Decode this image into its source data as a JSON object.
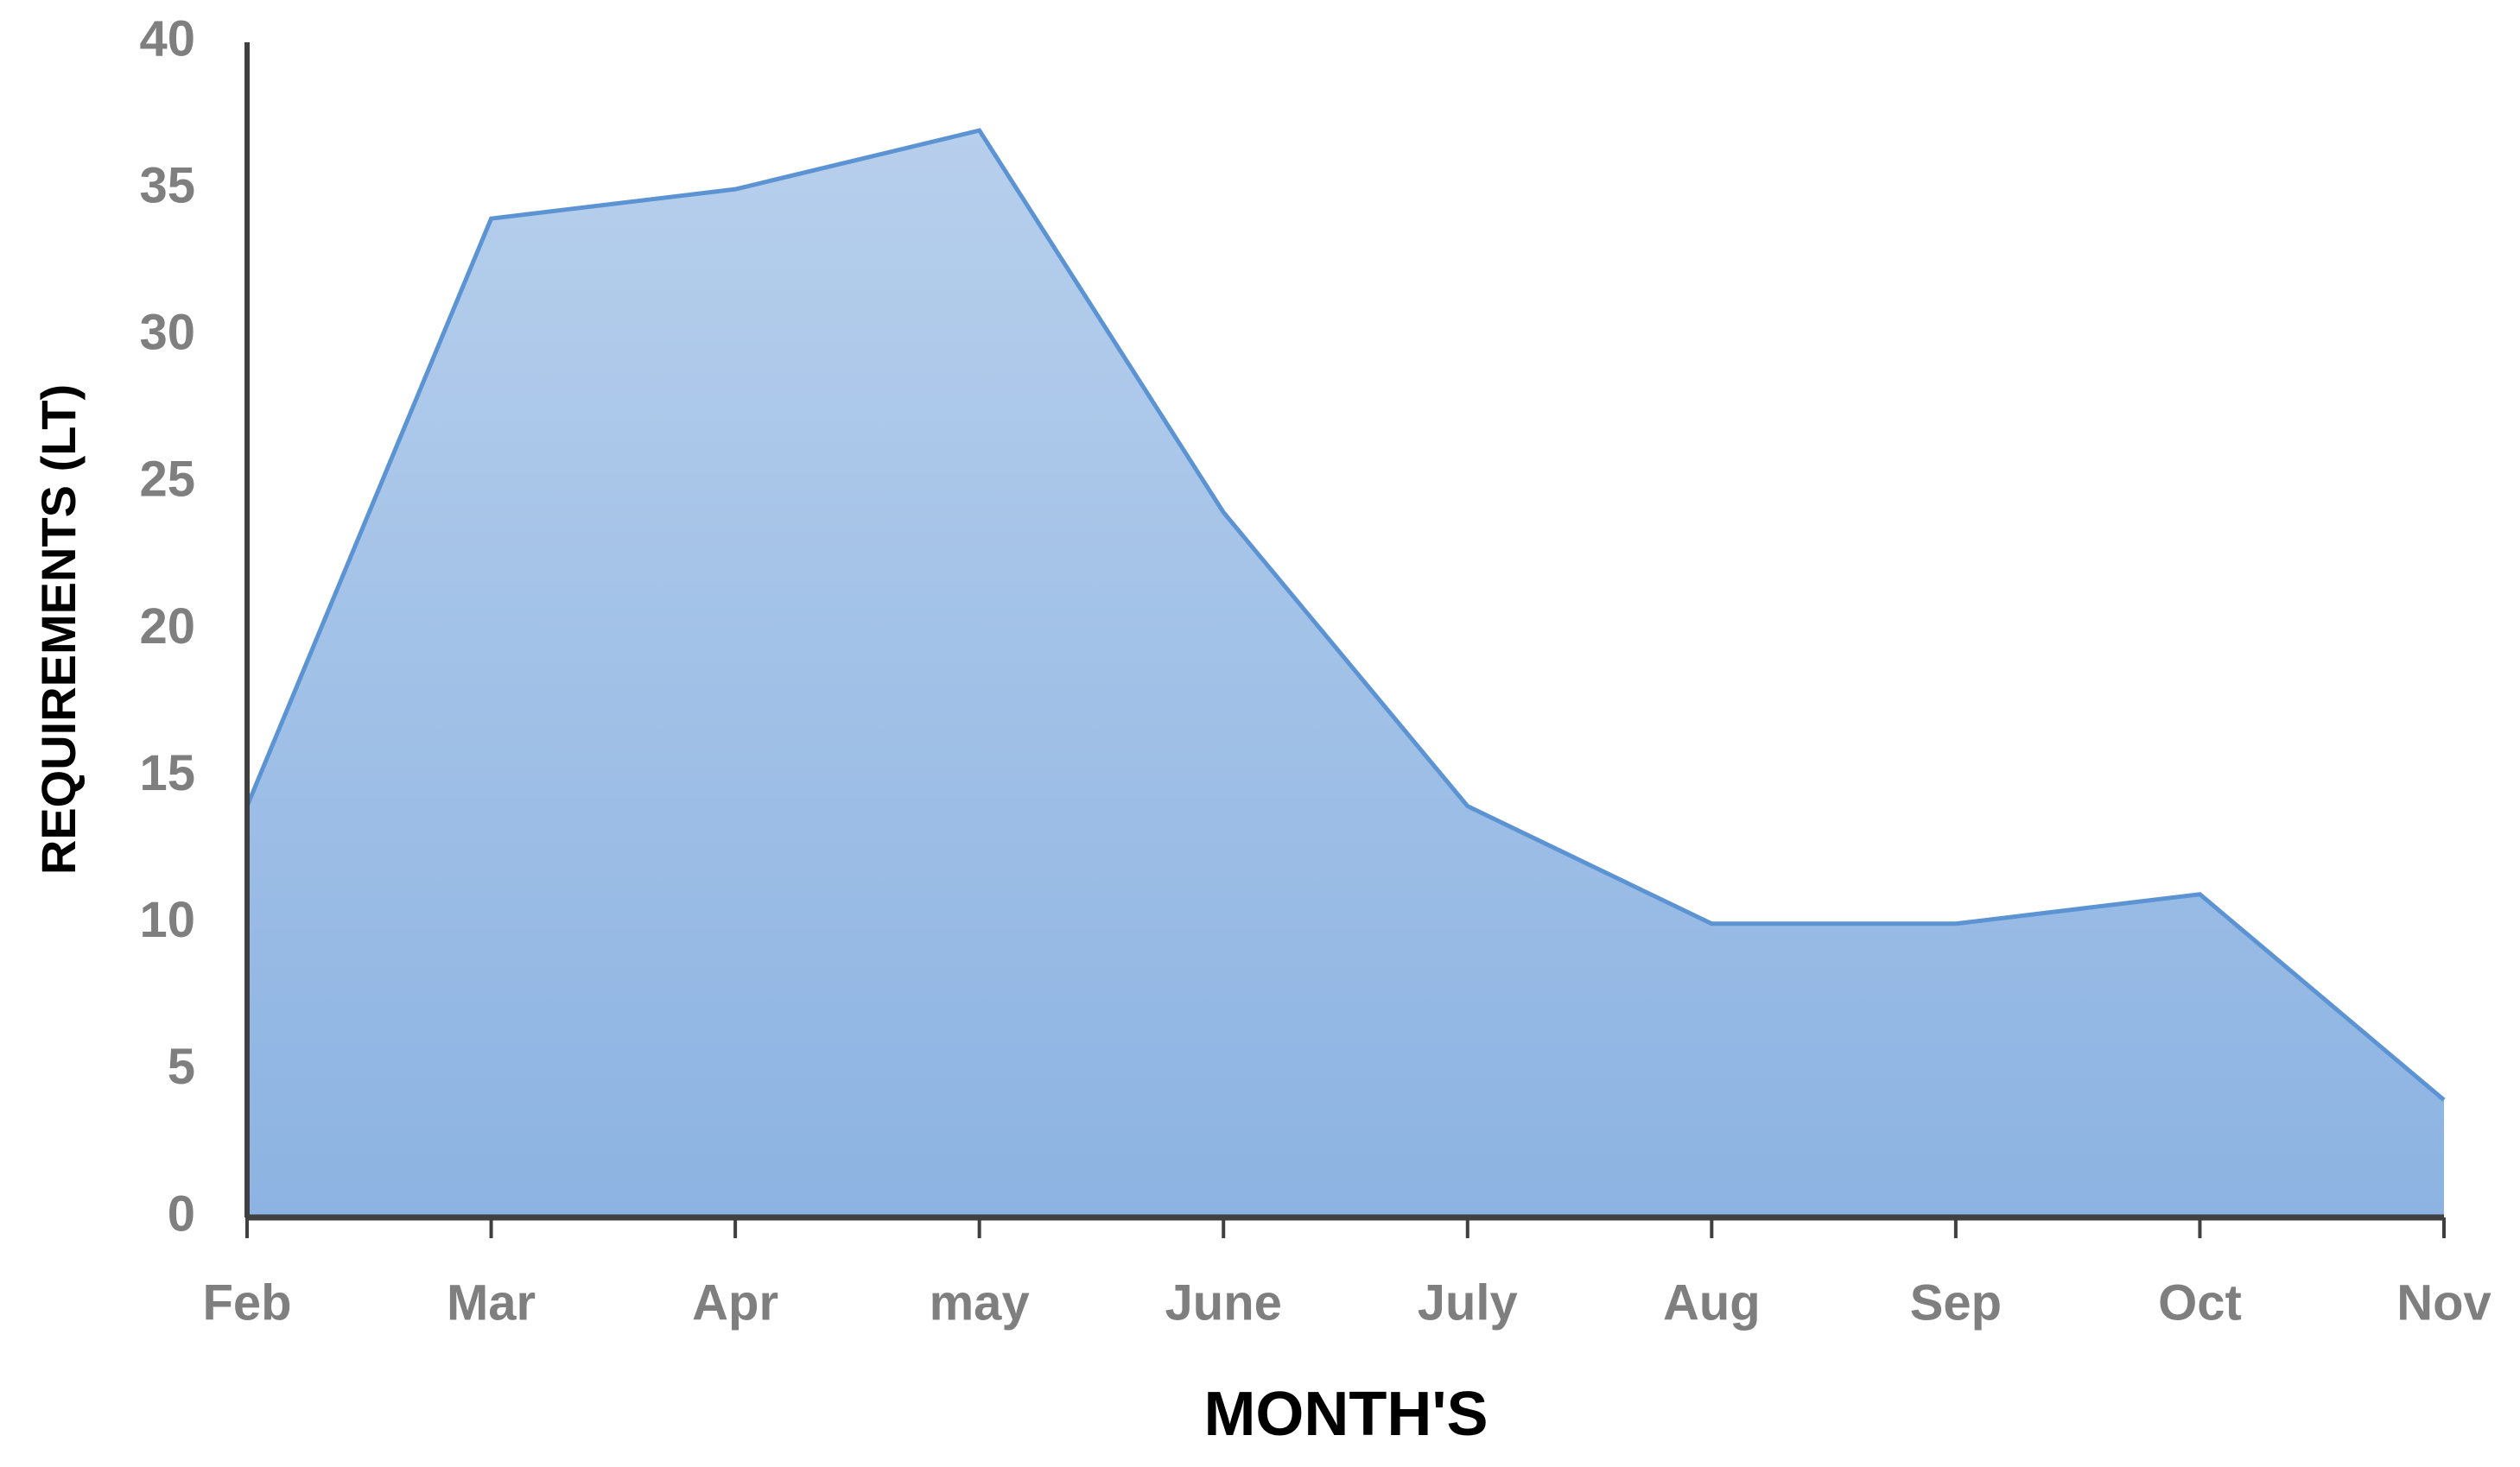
{
  "chart_data": {
    "type": "area",
    "xlabel": "MONTH'S",
    "ylabel": "REQUIREMENTS (LT)",
    "categories": [
      "Feb",
      "Mar",
      "Apr",
      "may",
      "June",
      "July",
      "Aug",
      "Sep",
      "Oct",
      "Nov"
    ],
    "values": [
      14,
      34,
      35,
      37,
      24,
      14,
      10,
      10,
      11,
      4
    ],
    "color": "#5b93d3",
    "ylim": [
      0,
      40
    ],
    "yticks": [
      0,
      5,
      10,
      15,
      20,
      25,
      30,
      35,
      40
    ],
    "grid": false
  }
}
